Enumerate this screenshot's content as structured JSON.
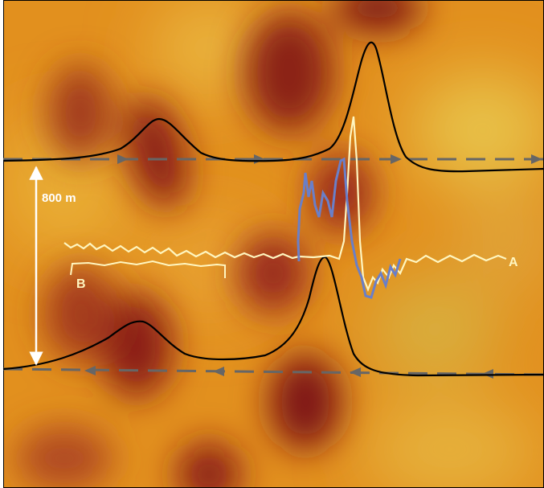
{
  "labels": {
    "scale": "800 m",
    "trace_a": "A",
    "trace_b": "B"
  }
}
